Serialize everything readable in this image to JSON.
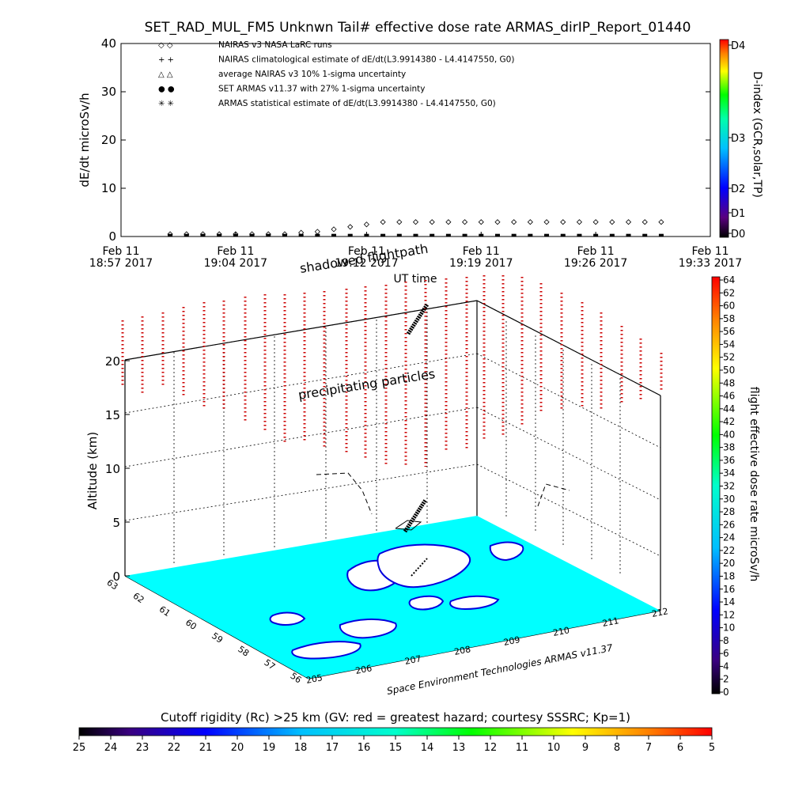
{
  "title": "SET_RAD_MUL_FM5 Unknwn Tail#  effective dose rate ARMAS_dirIP_Report_01440",
  "colors": {
    "dose_marker": "#0000cc",
    "land": "#00ffff",
    "coast": "#0000dd",
    "particles": "#cc0000"
  },
  "chart_data": [
    {
      "type": "scatter",
      "ylabel": "dE/dt microSv/h",
      "xlabel": "UT time",
      "ylim": [
        0,
        40
      ],
      "yticks": [
        0,
        10,
        20,
        30,
        40
      ],
      "xticks": [
        {
          "date": "Feb 11",
          "time": "18:57 2017"
        },
        {
          "date": "Feb 11",
          "time": "19:04 2017"
        },
        {
          "date": "Feb 11",
          "time": "19:12 2017"
        },
        {
          "date": "Feb 11",
          "time": "19:19 2017"
        },
        {
          "date": "Feb 11",
          "time": "19:26 2017"
        },
        {
          "date": "Feb 11",
          "time": "19:33 2017"
        }
      ],
      "legend": [
        {
          "symbol": "◇  ◇",
          "label": "NAIRAS v3 NASA LaRC runs"
        },
        {
          "symbol": "+  +",
          "label": "NAIRAS climatological estimate of dE/dt(L3.9914380 - L4.4147550, G0)"
        },
        {
          "symbol": "△  △",
          "label": "average NAIRAS v3 10% 1-sigma uncertainty"
        },
        {
          "symbol": "●  ●",
          "label": "SET ARMAS v11.37 with 27% 1-sigma uncertainty"
        },
        {
          "symbol": "✳  ✳",
          "label": "ARMAS statistical estimate of dE/dt(L3.9914380 - L4.4147550, G0)"
        }
      ],
      "series": [
        {
          "marker": "diamond",
          "x": [
            "19:00",
            "19:01",
            "19:02",
            "19:03",
            "19:04",
            "19:05",
            "19:06",
            "19:07",
            "19:08",
            "19:09",
            "19:10",
            "19:11",
            "19:12",
            "19:13",
            "19:14",
            "19:15",
            "19:16",
            "19:17",
            "19:18",
            "19:19",
            "19:20",
            "19:21",
            "19:22",
            "19:23",
            "19:24",
            "19:25",
            "19:26",
            "19:27",
            "19:28",
            "19:29",
            "19:30"
          ],
          "values": [
            0.5,
            0.5,
            0.5,
            0.5,
            0.5,
            0.5,
            0.5,
            0.5,
            0.8,
            1.0,
            1.5,
            2.0,
            2.5,
            3.0,
            3.0,
            3.0,
            3.0,
            3.0,
            3.0,
            3.0,
            3.0,
            3.0,
            3.0,
            3.0,
            3.0,
            3.0,
            3.0,
            3.0,
            3.0,
            3.0,
            3.0
          ]
        },
        {
          "marker": "dot",
          "x": [
            "19:00",
            "19:01",
            "19:02",
            "19:03",
            "19:04",
            "19:05",
            "19:06",
            "19:07",
            "19:08",
            "19:09",
            "19:10",
            "19:11",
            "19:12",
            "19:13",
            "19:14",
            "19:15",
            "19:16",
            "19:17",
            "19:18",
            "19:19",
            "19:20",
            "19:21",
            "19:22",
            "19:23",
            "19:24",
            "19:25",
            "19:26",
            "19:27",
            "19:28",
            "19:29",
            "19:30"
          ],
          "values": [
            0.3,
            0.3,
            0.3,
            0.3,
            0.3,
            0.3,
            0.3,
            0.3,
            0.3,
            0.3,
            0.3,
            0.3,
            0.3,
            0.3,
            0.3,
            0.3,
            0.3,
            0.3,
            0.3,
            0.3,
            0.3,
            0.3,
            0.3,
            0.3,
            0.3,
            0.3,
            0.3,
            0.3,
            0.3,
            0.3,
            0.3
          ]
        }
      ]
    },
    {
      "type": "scatter",
      "ylabel": "Altitude (km)",
      "zticks": [
        0,
        5,
        10,
        15,
        20
      ],
      "lon_ticks": [
        "205",
        "206",
        "207",
        "208",
        "209",
        "210",
        "211",
        "212"
      ],
      "lat_ticks": [
        "63",
        "62",
        "61",
        "60",
        "59",
        "58",
        "57",
        "56"
      ],
      "annotations": {
        "shadow": "shadowed flightpath",
        "precip": "precipitating particles",
        "credit": "Space Environment Technologies ARMAS v11.37"
      }
    },
    {
      "type": "heatmap",
      "label": "flight effective dose rate microSv/h",
      "ticks": [
        "0",
        "2",
        "4",
        "6",
        "8",
        "10",
        "12",
        "14",
        "16",
        "18",
        "20",
        "22",
        "24",
        "26",
        "28",
        "30",
        "32",
        "34",
        "36",
        "38",
        "40",
        "42",
        "44",
        "46",
        "48",
        "50",
        "52",
        "54",
        "56",
        "58",
        "60",
        "62",
        "64"
      ]
    },
    {
      "type": "heatmap",
      "label": "D-index (GCR,solar,TP)",
      "ticks": [
        "D0",
        "D1",
        "D2",
        "D3",
        "D4"
      ]
    },
    {
      "type": "heatmap",
      "label": "Cutoff rigidity (Rc) >25 km (GV: red = greatest hazard; courtesy SSSRC; Kp=1)",
      "ticks": [
        "25",
        "24",
        "23",
        "22",
        "21",
        "20",
        "19",
        "18",
        "17",
        "16",
        "15",
        "14",
        "13",
        "12",
        "11",
        "10",
        "9",
        "8",
        "7",
        "6",
        "5"
      ]
    }
  ]
}
